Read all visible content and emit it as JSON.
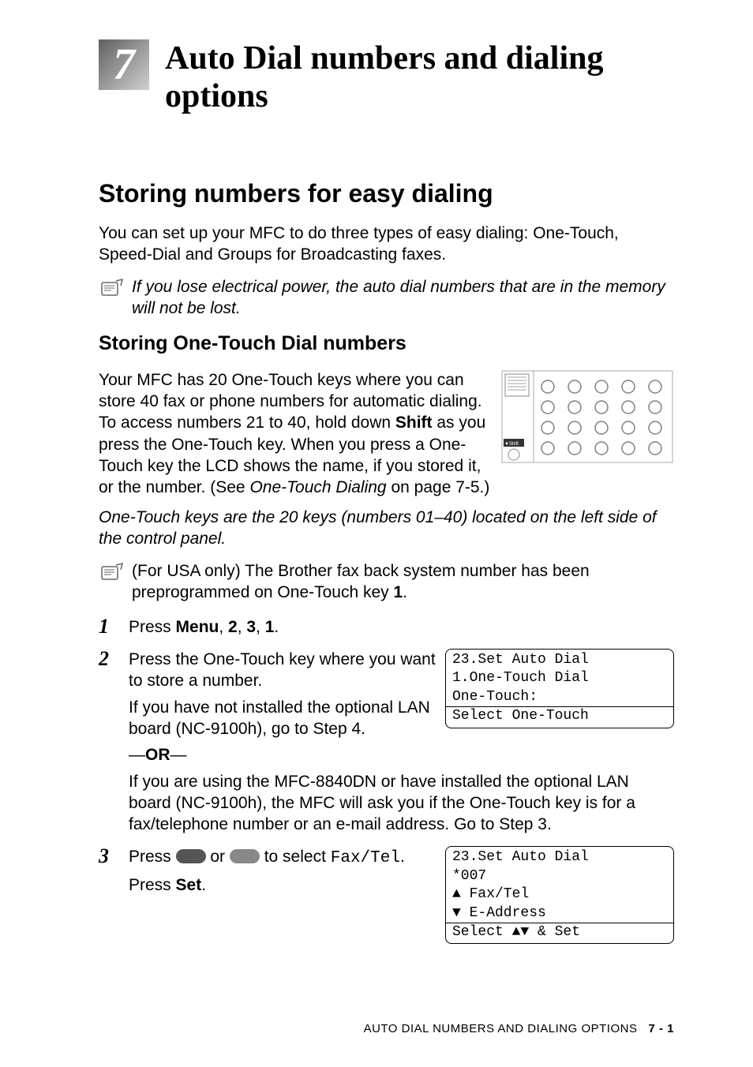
{
  "chapter": {
    "number": "7",
    "title": "Auto Dial numbers and dialing options"
  },
  "section": {
    "title": "Storing numbers for easy dialing",
    "intro": "You can set up your MFC to do three types of easy dialing: One-Touch, Speed-Dial and Groups for Broadcasting faxes.",
    "note1": "If you lose electrical power, the auto dial numbers that are in the memory will not be lost."
  },
  "subsection": {
    "title": "Storing One-Touch Dial numbers",
    "para1_a": "Your MFC has 20 One-Touch keys where you can store 40 fax or phone numbers for automatic dialing. To access numbers 21 to 40, hold down ",
    "shift": "Shift",
    "para1_b": " as you press the One-Touch key. When you press a One-Touch key the LCD shows the name, if you stored it, or the number. (See ",
    "xref": "One-Touch Dialing",
    "para1_c": " on page 7-5.)",
    "italic_para": "One-Touch keys are the 20 keys (numbers 01–40) located on the left side of the control panel.",
    "note2_a": "(For USA only) The Brother fax back system number has been preprogrammed on One-Touch key ",
    "note2_key": "1",
    "note2_b": "."
  },
  "keypad_fig": {
    "rows": 4,
    "cols": 5,
    "circle_stroke": "#808080",
    "circle_fill": "#ffffff",
    "shift_label": "▼Shift"
  },
  "steps": [
    {
      "n": "1",
      "parts": [
        {
          "t": "Press "
        },
        {
          "b": "Menu"
        },
        {
          "t": ", "
        },
        {
          "b": "2"
        },
        {
          "t": ", "
        },
        {
          "b": "3"
        },
        {
          "t": ", "
        },
        {
          "b": "1"
        },
        {
          "t": "."
        }
      ]
    },
    {
      "n": "2",
      "lines": [
        "Press the One-Touch key where you want to store a number.",
        "If you have not installed the optional LAN board (NC-9100h), go to Step 4.",
        "OR",
        "If you are using the MFC-8840DN or have installed the optional LAN board (NC-9100h), the MFC will ask you if the One-Touch key is for a fax/telephone number or an e-mail address. Go to Step 3."
      ],
      "lcd": {
        "l1": "23.Set Auto Dial",
        "l2": " 1.One-Touch Dial",
        "l3": "",
        "l4": "  One-Touch:",
        "l5": "Select One-Touch"
      }
    },
    {
      "n": "3",
      "line_a": "Press ",
      "line_b": " or ",
      "line_c": " to select ",
      "mono": "Fax/Tel",
      "line_d": ".",
      "line2_a": "Press ",
      "line2_b": "Set",
      "line2_c": ".",
      "lcd": {
        "l1": "23.Set Auto Dial",
        "l2": "  *007",
        "l3": "▲    Fax/Tel",
        "l4": "▼    E-Address",
        "l5": "Select ▲▼ & Set"
      }
    }
  ],
  "footer": {
    "label": "AUTO DIAL NUMBERS AND DIALING OPTIONS",
    "page": "7 - 1"
  }
}
